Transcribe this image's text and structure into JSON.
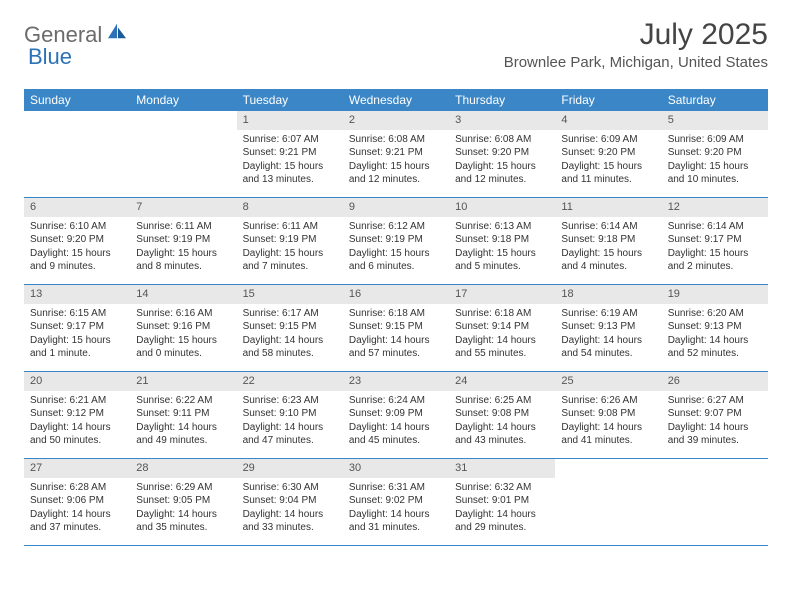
{
  "logo": {
    "text1": "General",
    "text2": "Blue"
  },
  "title": "July 2025",
  "location": "Brownlee Park, Michigan, United States",
  "colors": {
    "header_bg": "#3b86c6",
    "header_text": "#ffffff",
    "daynum_bg": "#e8e8e8",
    "border": "#3b86c6",
    "logo_gray": "#6b6b6b",
    "logo_blue": "#2d72b8"
  },
  "day_headers": [
    "Sunday",
    "Monday",
    "Tuesday",
    "Wednesday",
    "Thursday",
    "Friday",
    "Saturday"
  ],
  "weeks": [
    [
      null,
      null,
      {
        "n": "1",
        "sr": "Sunrise: 6:07 AM",
        "ss": "Sunset: 9:21 PM",
        "dl": "Daylight: 15 hours and 13 minutes."
      },
      {
        "n": "2",
        "sr": "Sunrise: 6:08 AM",
        "ss": "Sunset: 9:21 PM",
        "dl": "Daylight: 15 hours and 12 minutes."
      },
      {
        "n": "3",
        "sr": "Sunrise: 6:08 AM",
        "ss": "Sunset: 9:20 PM",
        "dl": "Daylight: 15 hours and 12 minutes."
      },
      {
        "n": "4",
        "sr": "Sunrise: 6:09 AM",
        "ss": "Sunset: 9:20 PM",
        "dl": "Daylight: 15 hours and 11 minutes."
      },
      {
        "n": "5",
        "sr": "Sunrise: 6:09 AM",
        "ss": "Sunset: 9:20 PM",
        "dl": "Daylight: 15 hours and 10 minutes."
      }
    ],
    [
      {
        "n": "6",
        "sr": "Sunrise: 6:10 AM",
        "ss": "Sunset: 9:20 PM",
        "dl": "Daylight: 15 hours and 9 minutes."
      },
      {
        "n": "7",
        "sr": "Sunrise: 6:11 AM",
        "ss": "Sunset: 9:19 PM",
        "dl": "Daylight: 15 hours and 8 minutes."
      },
      {
        "n": "8",
        "sr": "Sunrise: 6:11 AM",
        "ss": "Sunset: 9:19 PM",
        "dl": "Daylight: 15 hours and 7 minutes."
      },
      {
        "n": "9",
        "sr": "Sunrise: 6:12 AM",
        "ss": "Sunset: 9:19 PM",
        "dl": "Daylight: 15 hours and 6 minutes."
      },
      {
        "n": "10",
        "sr": "Sunrise: 6:13 AM",
        "ss": "Sunset: 9:18 PM",
        "dl": "Daylight: 15 hours and 5 minutes."
      },
      {
        "n": "11",
        "sr": "Sunrise: 6:14 AM",
        "ss": "Sunset: 9:18 PM",
        "dl": "Daylight: 15 hours and 4 minutes."
      },
      {
        "n": "12",
        "sr": "Sunrise: 6:14 AM",
        "ss": "Sunset: 9:17 PM",
        "dl": "Daylight: 15 hours and 2 minutes."
      }
    ],
    [
      {
        "n": "13",
        "sr": "Sunrise: 6:15 AM",
        "ss": "Sunset: 9:17 PM",
        "dl": "Daylight: 15 hours and 1 minute."
      },
      {
        "n": "14",
        "sr": "Sunrise: 6:16 AM",
        "ss": "Sunset: 9:16 PM",
        "dl": "Daylight: 15 hours and 0 minutes."
      },
      {
        "n": "15",
        "sr": "Sunrise: 6:17 AM",
        "ss": "Sunset: 9:15 PM",
        "dl": "Daylight: 14 hours and 58 minutes."
      },
      {
        "n": "16",
        "sr": "Sunrise: 6:18 AM",
        "ss": "Sunset: 9:15 PM",
        "dl": "Daylight: 14 hours and 57 minutes."
      },
      {
        "n": "17",
        "sr": "Sunrise: 6:18 AM",
        "ss": "Sunset: 9:14 PM",
        "dl": "Daylight: 14 hours and 55 minutes."
      },
      {
        "n": "18",
        "sr": "Sunrise: 6:19 AM",
        "ss": "Sunset: 9:13 PM",
        "dl": "Daylight: 14 hours and 54 minutes."
      },
      {
        "n": "19",
        "sr": "Sunrise: 6:20 AM",
        "ss": "Sunset: 9:13 PM",
        "dl": "Daylight: 14 hours and 52 minutes."
      }
    ],
    [
      {
        "n": "20",
        "sr": "Sunrise: 6:21 AM",
        "ss": "Sunset: 9:12 PM",
        "dl": "Daylight: 14 hours and 50 minutes."
      },
      {
        "n": "21",
        "sr": "Sunrise: 6:22 AM",
        "ss": "Sunset: 9:11 PM",
        "dl": "Daylight: 14 hours and 49 minutes."
      },
      {
        "n": "22",
        "sr": "Sunrise: 6:23 AM",
        "ss": "Sunset: 9:10 PM",
        "dl": "Daylight: 14 hours and 47 minutes."
      },
      {
        "n": "23",
        "sr": "Sunrise: 6:24 AM",
        "ss": "Sunset: 9:09 PM",
        "dl": "Daylight: 14 hours and 45 minutes."
      },
      {
        "n": "24",
        "sr": "Sunrise: 6:25 AM",
        "ss": "Sunset: 9:08 PM",
        "dl": "Daylight: 14 hours and 43 minutes."
      },
      {
        "n": "25",
        "sr": "Sunrise: 6:26 AM",
        "ss": "Sunset: 9:08 PM",
        "dl": "Daylight: 14 hours and 41 minutes."
      },
      {
        "n": "26",
        "sr": "Sunrise: 6:27 AM",
        "ss": "Sunset: 9:07 PM",
        "dl": "Daylight: 14 hours and 39 minutes."
      }
    ],
    [
      {
        "n": "27",
        "sr": "Sunrise: 6:28 AM",
        "ss": "Sunset: 9:06 PM",
        "dl": "Daylight: 14 hours and 37 minutes."
      },
      {
        "n": "28",
        "sr": "Sunrise: 6:29 AM",
        "ss": "Sunset: 9:05 PM",
        "dl": "Daylight: 14 hours and 35 minutes."
      },
      {
        "n": "29",
        "sr": "Sunrise: 6:30 AM",
        "ss": "Sunset: 9:04 PM",
        "dl": "Daylight: 14 hours and 33 minutes."
      },
      {
        "n": "30",
        "sr": "Sunrise: 6:31 AM",
        "ss": "Sunset: 9:02 PM",
        "dl": "Daylight: 14 hours and 31 minutes."
      },
      {
        "n": "31",
        "sr": "Sunrise: 6:32 AM",
        "ss": "Sunset: 9:01 PM",
        "dl": "Daylight: 14 hours and 29 minutes."
      },
      null,
      null
    ]
  ]
}
